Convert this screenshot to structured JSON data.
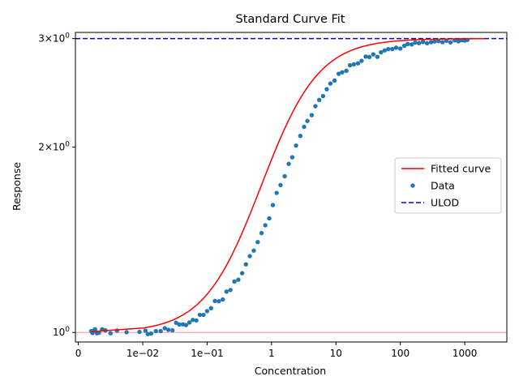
{
  "chart_data": {
    "type": "scatter",
    "title": "Standard Curve Fit",
    "xlabel": "Concentration",
    "ylabel": "Response",
    "x_scale": "symlog",
    "y_scale": "log",
    "xlim": [
      -0.00045,
      4500
    ],
    "ylim": [
      0.965,
      3.07
    ],
    "x_ticks": [
      {
        "value": 0,
        "label": "0"
      },
      {
        "value": 0.01,
        "label": "1e−02"
      },
      {
        "value": 0.1,
        "label": "1e−01"
      },
      {
        "value": 1,
        "label": "1"
      },
      {
        "value": 10,
        "label": "10"
      },
      {
        "value": 100,
        "label": "100"
      },
      {
        "value": 1000,
        "label": "1000"
      }
    ],
    "y_ticks": [
      {
        "value": 1,
        "base": "10",
        "exp": "0"
      },
      {
        "value": 2,
        "coef": "2",
        "base": "10",
        "exp": "0"
      },
      {
        "value": 3,
        "coef": "3",
        "base": "10",
        "exp": "0"
      }
    ],
    "reference_lines": [
      {
        "name": "ULOD",
        "value": 3.0,
        "color": "#0000cd",
        "style": "dashed"
      },
      {
        "name": "",
        "value": 1.0,
        "color": "#ffb6c1",
        "style": "solid"
      }
    ],
    "fit_params": {
      "bottom": 1.0,
      "top": 3.0,
      "ec50": 1.2,
      "hill": 1.0
    },
    "fit_range": [
      0.002,
      2000
    ],
    "data_points": [
      [
        0.002,
        1.005
      ],
      [
        0.0022,
        0.998
      ],
      [
        0.0024,
        1.007
      ],
      [
        0.0026,
        1.012
      ],
      [
        0.0029,
        0.997
      ],
      [
        0.0032,
        0.999
      ],
      [
        0.0037,
        1.012
      ],
      [
        0.0042,
        1.008
      ],
      [
        0.005,
        0.997
      ],
      [
        0.006,
        1.007
      ],
      [
        0.0075,
        1.001
      ],
      [
        0.0095,
        1.002
      ],
      [
        0.011,
        1.007
      ],
      [
        0.012,
        0.994
      ],
      [
        0.0135,
        0.996
      ],
      [
        0.016,
        1.005
      ],
      [
        0.019,
        1.005
      ],
      [
        0.022,
        1.016
      ],
      [
        0.025,
        1.01
      ],
      [
        0.029,
        1.008
      ],
      [
        0.033,
        1.037
      ],
      [
        0.037,
        1.03
      ],
      [
        0.042,
        1.031
      ],
      [
        0.047,
        1.028
      ],
      [
        0.053,
        1.038
      ],
      [
        0.06,
        1.048
      ],
      [
        0.068,
        1.046
      ],
      [
        0.077,
        1.068
      ],
      [
        0.088,
        1.068
      ],
      [
        0.1,
        1.083
      ],
      [
        0.115,
        1.095
      ],
      [
        0.132,
        1.125
      ],
      [
        0.152,
        1.124
      ],
      [
        0.175,
        1.131
      ],
      [
        0.2,
        1.165
      ],
      [
        0.23,
        1.172
      ],
      [
        0.265,
        1.21
      ],
      [
        0.305,
        1.218
      ],
      [
        0.35,
        1.248
      ],
      [
        0.4,
        1.29
      ],
      [
        0.46,
        1.33
      ],
      [
        0.53,
        1.358
      ],
      [
        0.61,
        1.402
      ],
      [
        0.7,
        1.45
      ],
      [
        0.8,
        1.493
      ],
      [
        0.92,
        1.532
      ],
      [
        1.05,
        1.61
      ],
      [
        1.2,
        1.685
      ],
      [
        1.38,
        1.735
      ],
      [
        1.6,
        1.793
      ],
      [
        1.85,
        1.878
      ],
      [
        2.1,
        1.925
      ],
      [
        2.4,
        2.011
      ],
      [
        2.8,
        2.085
      ],
      [
        3.2,
        2.157
      ],
      [
        3.6,
        2.205
      ],
      [
        4.2,
        2.253
      ],
      [
        4.8,
        2.33
      ],
      [
        5.5,
        2.385
      ],
      [
        6.3,
        2.42
      ],
      [
        7.2,
        2.483
      ],
      [
        8.2,
        2.536
      ],
      [
        9.5,
        2.565
      ],
      [
        11.0,
        2.63
      ],
      [
        12.5,
        2.645
      ],
      [
        14.5,
        2.66
      ],
      [
        16.5,
        2.715
      ],
      [
        19.0,
        2.725
      ],
      [
        22.0,
        2.735
      ],
      [
        25.0,
        2.76
      ],
      [
        29.0,
        2.805
      ],
      [
        33.0,
        2.8
      ],
      [
        38.0,
        2.828
      ],
      [
        44.0,
        2.802
      ],
      [
        50.0,
        2.85
      ],
      [
        57.0,
        2.87
      ],
      [
        65.0,
        2.885
      ],
      [
        75.0,
        2.885
      ],
      [
        86.0,
        2.9
      ],
      [
        100.0,
        2.89
      ],
      [
        115.0,
        2.92
      ],
      [
        130.0,
        2.94
      ],
      [
        150.0,
        2.935
      ],
      [
        170.0,
        2.955
      ],
      [
        195.0,
        2.95
      ],
      [
        225.0,
        2.962
      ],
      [
        260.0,
        2.948
      ],
      [
        300.0,
        2.96
      ],
      [
        340.0,
        2.968
      ],
      [
        390.0,
        2.972
      ],
      [
        450.0,
        2.96
      ],
      [
        520.0,
        2.975
      ],
      [
        600.0,
        2.958
      ],
      [
        700.0,
        2.98
      ],
      [
        800.0,
        2.97
      ],
      [
        900.0,
        2.982
      ],
      [
        1000.0,
        2.978
      ],
      [
        1100.0,
        2.985
      ]
    ],
    "legend": {
      "position": "center-right",
      "entries": [
        {
          "label": "Fitted curve",
          "kind": "line",
          "color": "#ff0000"
        },
        {
          "label": "Data",
          "kind": "marker",
          "color": "#1f77b4"
        },
        {
          "label": "ULOD",
          "kind": "dashed",
          "color": "#0000cd"
        }
      ]
    },
    "colors": {
      "data": "#1f77b4",
      "fit": "#ff0000",
      "ulod": "#0000cd",
      "baseline": "#ffb6c1"
    },
    "grid": false
  }
}
